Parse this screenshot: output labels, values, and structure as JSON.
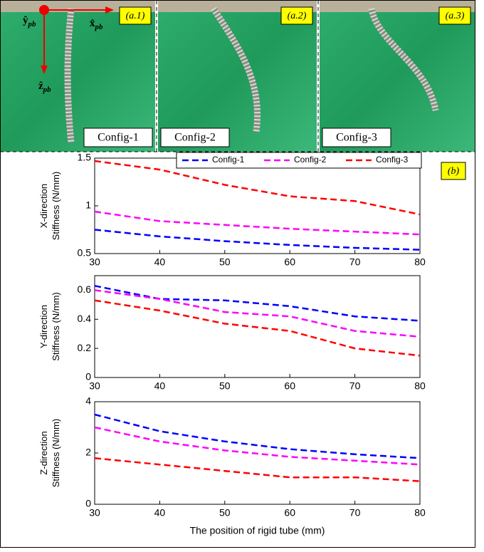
{
  "photos": [
    {
      "tag": "(a.1)",
      "config": "Config-1"
    },
    {
      "tag": "(a.2)",
      "config": "Config-2"
    },
    {
      "tag": "(a.3)",
      "config": "Config-3"
    }
  ],
  "frame_axes": {
    "y": "ŷ",
    "x": "x̂",
    "z": "ẑ",
    "sub": "pb"
  },
  "panel_label": "(b)",
  "chart_data": [
    {
      "type": "line",
      "ylabel": [
        "X-direction",
        "Stiffness (N/mm)"
      ],
      "x": [
        30,
        40,
        50,
        60,
        70,
        80
      ],
      "xlim": [
        30,
        80
      ],
      "xticks": [
        30,
        40,
        50,
        60,
        70,
        80
      ],
      "ylim": [
        0.5,
        1.5
      ],
      "yticks": [
        0.5,
        1,
        1.5
      ],
      "legend": "top right",
      "series": [
        {
          "name": "Config-1",
          "color": "#0000ff",
          "values": [
            0.75,
            0.68,
            0.63,
            0.59,
            0.56,
            0.54
          ]
        },
        {
          "name": "Config-2",
          "color": "#ff00ff",
          "values": [
            0.94,
            0.84,
            0.8,
            0.76,
            0.73,
            0.7
          ]
        },
        {
          "name": "Config-3",
          "color": "#ff0000",
          "values": [
            1.47,
            1.38,
            1.22,
            1.1,
            1.05,
            0.91
          ]
        }
      ]
    },
    {
      "type": "line",
      "ylabel": [
        "Y-direction",
        "Stiffness (N/mm)"
      ],
      "x": [
        30,
        40,
        50,
        60,
        70,
        80
      ],
      "xlim": [
        30,
        80
      ],
      "xticks": [
        30,
        40,
        50,
        60,
        70,
        80
      ],
      "ylim": [
        0,
        0.7
      ],
      "yticks": [
        0,
        0.2,
        0.4,
        0.6
      ],
      "series": [
        {
          "name": "Config-1",
          "color": "#0000ff",
          "values": [
            0.63,
            0.54,
            0.53,
            0.49,
            0.42,
            0.39
          ]
        },
        {
          "name": "Config-2",
          "color": "#ff00ff",
          "values": [
            0.6,
            0.54,
            0.45,
            0.42,
            0.32,
            0.28
          ]
        },
        {
          "name": "Config-3",
          "color": "#ff0000",
          "values": [
            0.53,
            0.46,
            0.37,
            0.32,
            0.2,
            0.15
          ]
        }
      ]
    },
    {
      "type": "line",
      "ylabel": [
        "Z-direction",
        "Stiffness (N/mm)"
      ],
      "xlabel": "The position of rigid tube (mm)",
      "x": [
        30,
        40,
        50,
        60,
        70,
        80
      ],
      "xlim": [
        30,
        80
      ],
      "xticks": [
        30,
        40,
        50,
        60,
        70,
        80
      ],
      "ylim": [
        0,
        4
      ],
      "yticks": [
        0,
        2,
        4
      ],
      "series": [
        {
          "name": "Config-1",
          "color": "#0000ff",
          "values": [
            3.5,
            2.85,
            2.45,
            2.15,
            1.95,
            1.8
          ]
        },
        {
          "name": "Config-2",
          "color": "#ff00ff",
          "values": [
            3.0,
            2.45,
            2.1,
            1.85,
            1.7,
            1.55
          ]
        },
        {
          "name": "Config-3",
          "color": "#ff0000",
          "values": [
            1.8,
            1.55,
            1.3,
            1.05,
            1.05,
            0.9
          ]
        }
      ]
    }
  ]
}
